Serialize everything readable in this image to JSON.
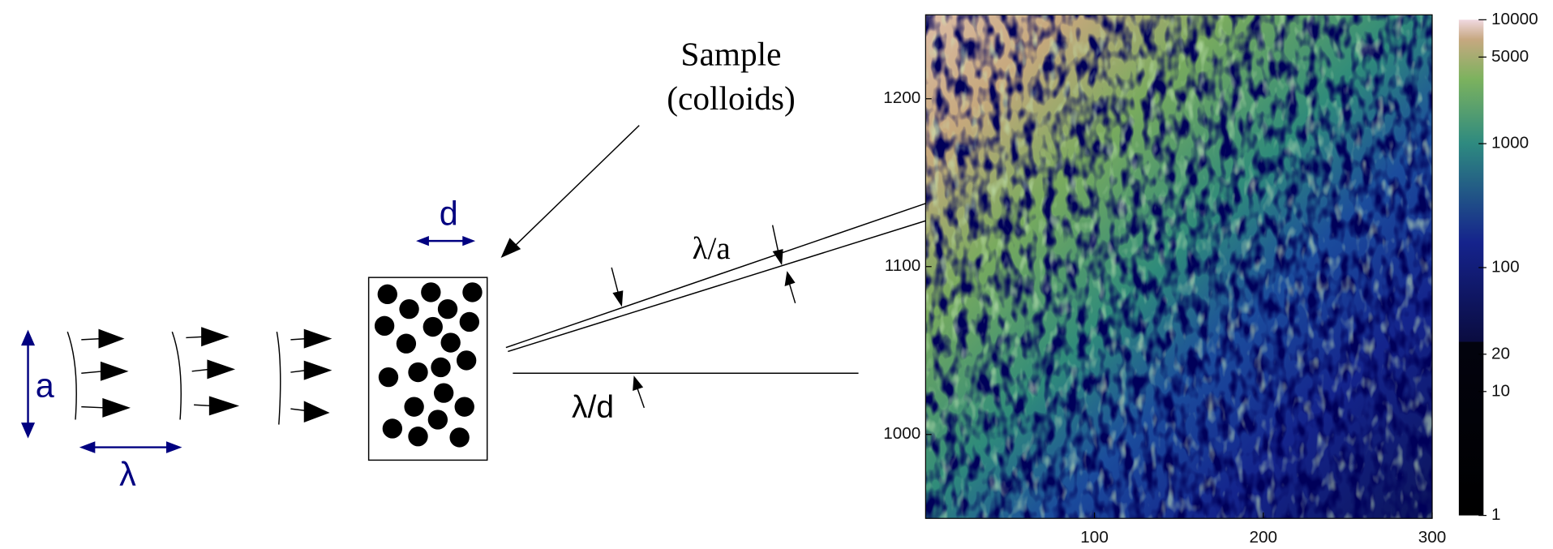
{
  "diagram": {
    "labels": {
      "a": "a",
      "lambda": "λ",
      "d": "d",
      "sample": "Sample",
      "colloids": "(colloids)",
      "lambda_a": "λ/a",
      "lambda_d": "λ/d"
    }
  },
  "heatmap": {
    "xlim": [
      0,
      300
    ],
    "ylim": [
      950,
      1250
    ],
    "xticks": [
      100,
      200,
      300
    ],
    "yticks": [
      1000,
      1100,
      1200
    ],
    "colorbar": {
      "log": true,
      "lim": [
        1,
        10000
      ],
      "ticks": [
        1,
        10,
        20,
        100,
        1000,
        5000,
        10000
      ]
    }
  }
}
